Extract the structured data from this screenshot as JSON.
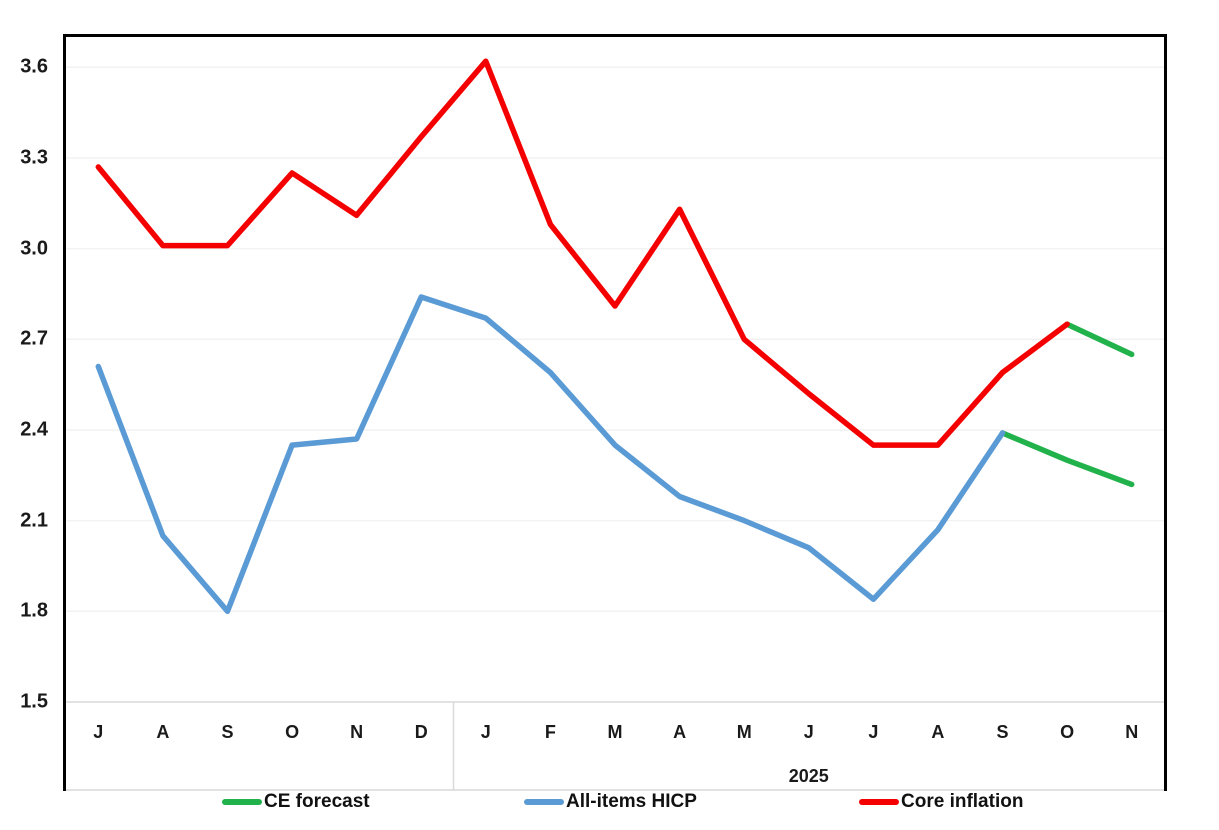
{
  "colors": {
    "border": "#000000",
    "gridline": "#f2f2f2",
    "axis_band_line": "#d9d9d9",
    "background": "#ffffff",
    "text": "#1a1a1a",
    "forecast_green": "#21b24c",
    "hicp_blue": "#5b9bd5",
    "core_red": "#f40000"
  },
  "chart_data": {
    "type": "line",
    "title": "",
    "categories": [
      "J",
      "A",
      "S",
      "O",
      "N",
      "D",
      "J",
      "F",
      "M",
      "A",
      "M",
      "J",
      "J",
      "A",
      "S",
      "O",
      "N"
    ],
    "category_groups": [
      {
        "label": "",
        "start": 0,
        "end": 5
      },
      {
        "label": "2025",
        "start": 6,
        "end": 16
      }
    ],
    "ylim": [
      1.5,
      3.7
    ],
    "yticks": [
      1.5,
      1.8,
      2.1,
      2.4,
      2.7,
      3.0,
      3.3,
      3.6
    ],
    "ytick_labels": [
      "1.5",
      "1.8",
      "2.1",
      "2.4",
      "2.7",
      "3.0",
      "3.3",
      "3.6"
    ],
    "grid": "horizontal gridlines at 0.3 intervals, very light",
    "legend_position": "bottom",
    "series": [
      {
        "name": "CE forecast",
        "color": "#21b24c",
        "segments": [
          [
            [
              14,
              2.39
            ],
            [
              15,
              2.3
            ],
            [
              16,
              2.22
            ]
          ],
          [
            [
              15,
              2.75
            ],
            [
              16,
              2.65
            ]
          ]
        ]
      },
      {
        "name": "All-items HICP",
        "color": "#5b9bd5",
        "segments": [
          [
            [
              0,
              2.61
            ],
            [
              1,
              2.05
            ],
            [
              2,
              1.8
            ],
            [
              3,
              2.35
            ],
            [
              4,
              2.37
            ],
            [
              5,
              2.84
            ],
            [
              6,
              2.77
            ],
            [
              7,
              2.59
            ],
            [
              8,
              2.35
            ],
            [
              9,
              2.18
            ],
            [
              10,
              2.1
            ],
            [
              11,
              2.01
            ],
            [
              12,
              1.84
            ],
            [
              13,
              2.07
            ],
            [
              14,
              2.39
            ]
          ]
        ]
      },
      {
        "name": "Core inflation",
        "color": "#f40000",
        "segments": [
          [
            [
              0,
              3.27
            ],
            [
              1,
              3.01
            ],
            [
              2,
              3.01
            ],
            [
              3,
              3.25
            ],
            [
              4,
              3.11
            ],
            [
              5,
              3.37
            ],
            [
              6,
              3.62
            ],
            [
              7,
              3.08
            ],
            [
              8,
              2.81
            ],
            [
              9,
              3.13
            ],
            [
              10,
              2.7
            ],
            [
              11,
              2.52
            ],
            [
              12,
              2.35
            ],
            [
              13,
              2.35
            ],
            [
              14,
              2.59
            ],
            [
              15,
              2.75
            ]
          ]
        ]
      }
    ]
  }
}
